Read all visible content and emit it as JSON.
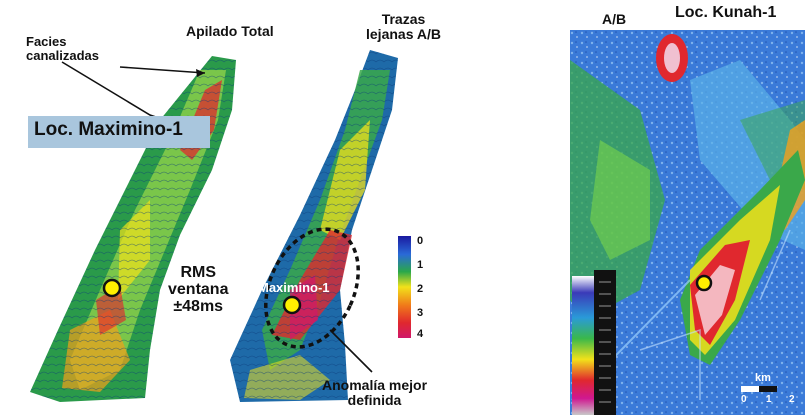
{
  "left_panel": {
    "facies_label_line1": "Facies",
    "facies_label_line2": "canalizadas",
    "apilado_label": "Apilado Total",
    "trazas_label_line1": "Trazas",
    "trazas_label_line2": "lejanas A/B",
    "loc_maximino_label": "Loc. Maximino-1",
    "rms_line1": "RMS",
    "rms_line2": "ventana",
    "rms_line3": "±48ms",
    "maximino_well_label": "Maximino-1",
    "anomalia_line1": "Anomalía mejor",
    "anomalia_line2": "definida",
    "scale_ticks": [
      "0",
      "1",
      "2",
      "3",
      "4"
    ]
  },
  "right_panel": {
    "ab_label": "A/B",
    "kunah_label": "Loc. Kunah-1",
    "km_label": "km",
    "km_ticks": [
      "0",
      "1",
      "2"
    ]
  },
  "colors": {
    "low": "#1a3fb0",
    "mid": "#2aa84a",
    "high_yellow": "#f2e21a",
    "high_red": "#e0282e",
    "peak_magenta": "#d0186a",
    "well_marker": "#ffef00"
  }
}
